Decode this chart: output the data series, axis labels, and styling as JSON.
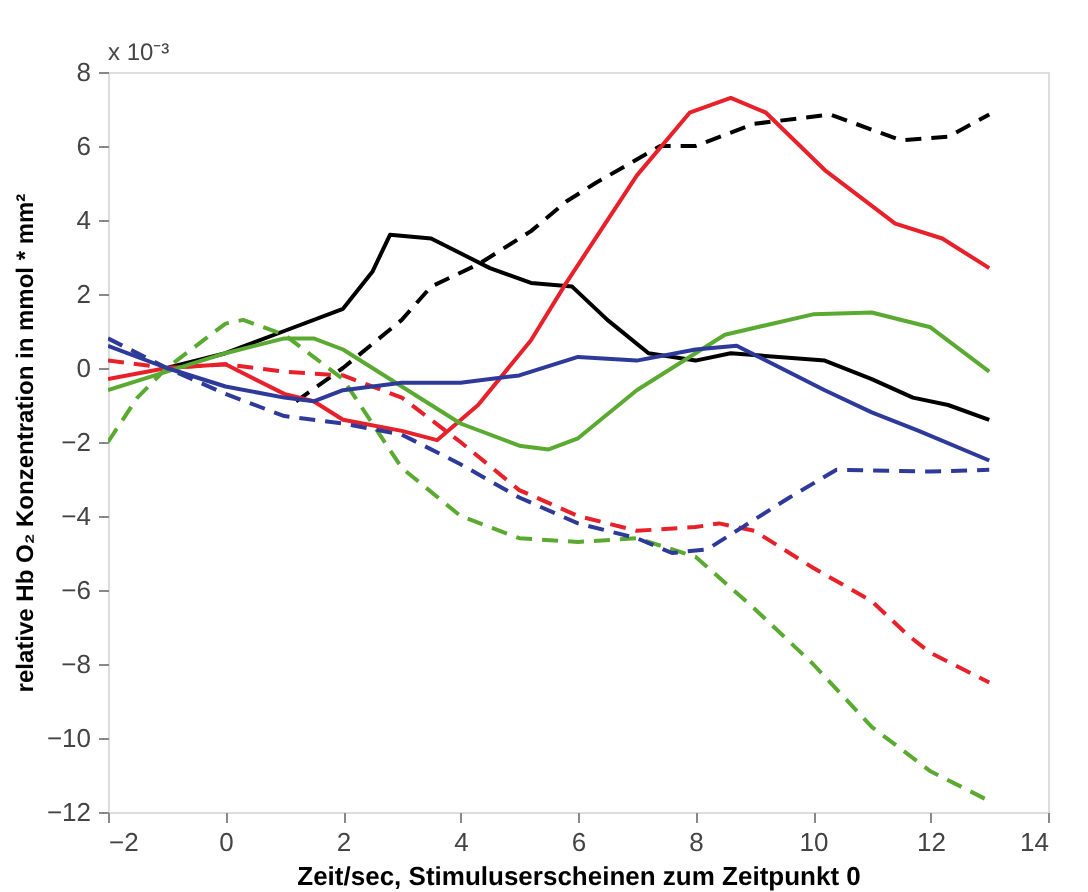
{
  "chart_data": {
    "type": "line",
    "xlabel": "Zeit/sec, Stimuluserscheinen zum Zeitpunkt 0",
    "ylabel": "relative Hb O₂ Konzentration in mmol * mm²",
    "annotations": [
      "x 10⁻³"
    ],
    "xlim": [
      -2,
      14
    ],
    "xticks": [
      -2,
      0,
      2,
      4,
      6,
      8,
      10,
      12,
      14
    ],
    "ylim": [
      -12,
      8
    ],
    "yticks": [
      -12,
      -10,
      -8,
      -6,
      -4,
      -2,
      0,
      2,
      4,
      6,
      8
    ],
    "grid": false,
    "series": [
      {
        "color": "#000000",
        "line_style": "solid",
        "x": [
          -1,
          0,
          1,
          2,
          2.5,
          2.8,
          3.5,
          4,
          4.5,
          5.2,
          5.9,
          6.5,
          7.2,
          8,
          8.6,
          10.2,
          11,
          11.7,
          12.3,
          13
        ],
        "values": [
          0,
          0.4,
          1.0,
          1.6,
          2.6,
          3.6,
          3.5,
          3.1,
          2.7,
          2.3,
          2.2,
          1.3,
          0.4,
          0.2,
          0.4,
          0.2,
          -0.3,
          -0.8,
          -1.0,
          -1.4
        ]
      },
      {
        "color": "#000000",
        "line_style": "dashed",
        "x": [
          1.2,
          2,
          3,
          3.5,
          4.3,
          5.2,
          5.8,
          6.3,
          7.4,
          8,
          9,
          10.3,
          11.5,
          12.3,
          13
        ],
        "values": [
          -0.9,
          0,
          1.3,
          2.2,
          2.8,
          3.7,
          4.5,
          5.0,
          6.0,
          6.0,
          6.6,
          6.85,
          6.15,
          6.25,
          6.85
        ]
      },
      {
        "color": "#e8202a",
        "line_style": "solid",
        "x": [
          -2,
          -1,
          0,
          1,
          1.5,
          2,
          3,
          3.6,
          4.3,
          5.2,
          5.8,
          7,
          7.9,
          8.6,
          9.2,
          10.2,
          11.4,
          12.2,
          13
        ],
        "values": [
          -0.3,
          0,
          0.1,
          -0.7,
          -0.9,
          -1.4,
          -1.7,
          -1.95,
          -1.0,
          0.75,
          2.3,
          5.2,
          6.9,
          7.3,
          6.9,
          5.35,
          3.9,
          3.5,
          2.7
        ]
      },
      {
        "color": "#e8202a",
        "line_style": "dashed",
        "x": [
          -2,
          -1,
          0,
          1,
          2,
          3,
          4,
          5,
          6,
          7,
          8,
          8.4,
          9,
          10,
          11,
          11.6,
          12,
          13
        ],
        "values": [
          0.2,
          0,
          0.1,
          -0.1,
          -0.2,
          -0.8,
          -2.0,
          -3.3,
          -4.0,
          -4.4,
          -4.3,
          -4.2,
          -4.4,
          -5.4,
          -6.3,
          -7.2,
          -7.7,
          -8.5
        ]
      },
      {
        "color": "#5aaa32",
        "line_style": "solid",
        "x": [
          -2,
          -1,
          0,
          1,
          1.5,
          2,
          3,
          4,
          5,
          5.5,
          6,
          7,
          7.5,
          8.5,
          10,
          11,
          12,
          13
        ],
        "values": [
          -0.6,
          -0.1,
          0.4,
          0.8,
          0.8,
          0.5,
          -0.5,
          -1.5,
          -2.1,
          -2.2,
          -1.9,
          -0.6,
          -0.1,
          0.9,
          1.45,
          1.5,
          1.1,
          -0.1
        ]
      },
      {
        "color": "#5aaa32",
        "line_style": "dashed",
        "x": [
          -2,
          -1.5,
          -1,
          0,
          0.3,
          1,
          2,
          2.5,
          3,
          4,
          5,
          6,
          7,
          8,
          9,
          10,
          11,
          12,
          13
        ],
        "values": [
          -2.0,
          -0.8,
          0,
          1.2,
          1.3,
          0.9,
          -0.3,
          -1.5,
          -2.7,
          -4.0,
          -4.6,
          -4.7,
          -4.6,
          -5.1,
          -6.5,
          -8.0,
          -9.7,
          -10.9,
          -11.7
        ]
      },
      {
        "color": "#2e3a9a",
        "line_style": "solid",
        "x": [
          -2,
          -1,
          0,
          1,
          1.5,
          2,
          3,
          4,
          5,
          6,
          7,
          8,
          8.7,
          10.2,
          11,
          11.8,
          13
        ],
        "values": [
          0.6,
          0,
          -0.5,
          -0.8,
          -0.9,
          -0.6,
          -0.4,
          -0.4,
          -0.2,
          0.3,
          0.2,
          0.5,
          0.6,
          -0.6,
          -1.2,
          -1.7,
          -2.5
        ]
      },
      {
        "color": "#2e3a9a",
        "line_style": "dashed",
        "x": [
          -2,
          -1,
          0,
          1,
          2,
          3,
          4,
          5,
          6,
          7,
          7.6,
          8.2,
          8.8,
          9.6,
          10.4,
          12,
          13
        ],
        "values": [
          0.8,
          0,
          -0.7,
          -1.3,
          -1.5,
          -1.8,
          -2.6,
          -3.5,
          -4.2,
          -4.6,
          -5.0,
          -4.9,
          -4.3,
          -3.5,
          -2.75,
          -2.8,
          -2.75
        ]
      }
    ]
  }
}
